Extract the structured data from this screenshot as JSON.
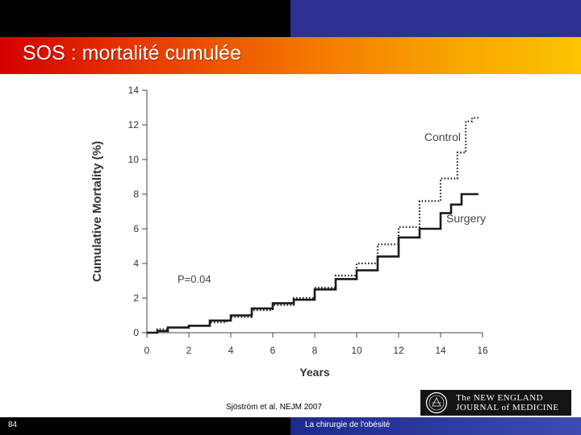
{
  "slide": {
    "title": "SOS : mortalité cumulée",
    "page_number": "84",
    "footer": "La chirurgie de l'obésité",
    "citation": "Sjöström et al. NEJM 2007",
    "journal_logo_text": "The NEW ENGLAND\nJOURNAL of MEDICINE"
  },
  "colors": {
    "top_left_bar": "#000000",
    "top_right_bar": "#2e3192",
    "title_text": "#ffffff",
    "series_line": "#1a1a1a"
  },
  "chart_data": {
    "type": "line",
    "xlabel": "Years",
    "ylabel": "Cumulative Mortality (%)",
    "xlim": [
      0,
      16
    ],
    "ylim": [
      0,
      14
    ],
    "x_ticks": [
      0,
      2,
      4,
      6,
      8,
      10,
      12,
      14,
      16
    ],
    "y_ticks": [
      0,
      2,
      4,
      6,
      8,
      10,
      12,
      14
    ],
    "grid": false,
    "annotation": "P=0.04",
    "series": [
      {
        "name": "Control",
        "style": "dotted",
        "points": [
          [
            0,
            0
          ],
          [
            0.5,
            0.2
          ],
          [
            1,
            0.3
          ],
          [
            2,
            0.4
          ],
          [
            3,
            0.6
          ],
          [
            3.8,
            0.7
          ],
          [
            4,
            0.9
          ],
          [
            5,
            1.3
          ],
          [
            6,
            1.6
          ],
          [
            7,
            2.0
          ],
          [
            8,
            2.6
          ],
          [
            9,
            3.3
          ],
          [
            10,
            4.0
          ],
          [
            11,
            5.1
          ],
          [
            12,
            6.1
          ],
          [
            13,
            7.6
          ],
          [
            14,
            8.9
          ],
          [
            14.8,
            10.4
          ],
          [
            15.2,
            12.2
          ],
          [
            15.5,
            12.4
          ],
          [
            15.8,
            12.4
          ]
        ]
      },
      {
        "name": "Surgery",
        "style": "solid",
        "points": [
          [
            0,
            0
          ],
          [
            0.5,
            0.1
          ],
          [
            1,
            0.3
          ],
          [
            2,
            0.4
          ],
          [
            3,
            0.7
          ],
          [
            4,
            1.0
          ],
          [
            5,
            1.4
          ],
          [
            6,
            1.7
          ],
          [
            7,
            1.9
          ],
          [
            8,
            2.5
          ],
          [
            9,
            3.1
          ],
          [
            10,
            3.6
          ],
          [
            11,
            4.4
          ],
          [
            12,
            5.5
          ],
          [
            13,
            6.0
          ],
          [
            14,
            6.9
          ],
          [
            14.5,
            7.4
          ],
          [
            15,
            8.0
          ],
          [
            15.8,
            8.0
          ]
        ]
      }
    ]
  }
}
